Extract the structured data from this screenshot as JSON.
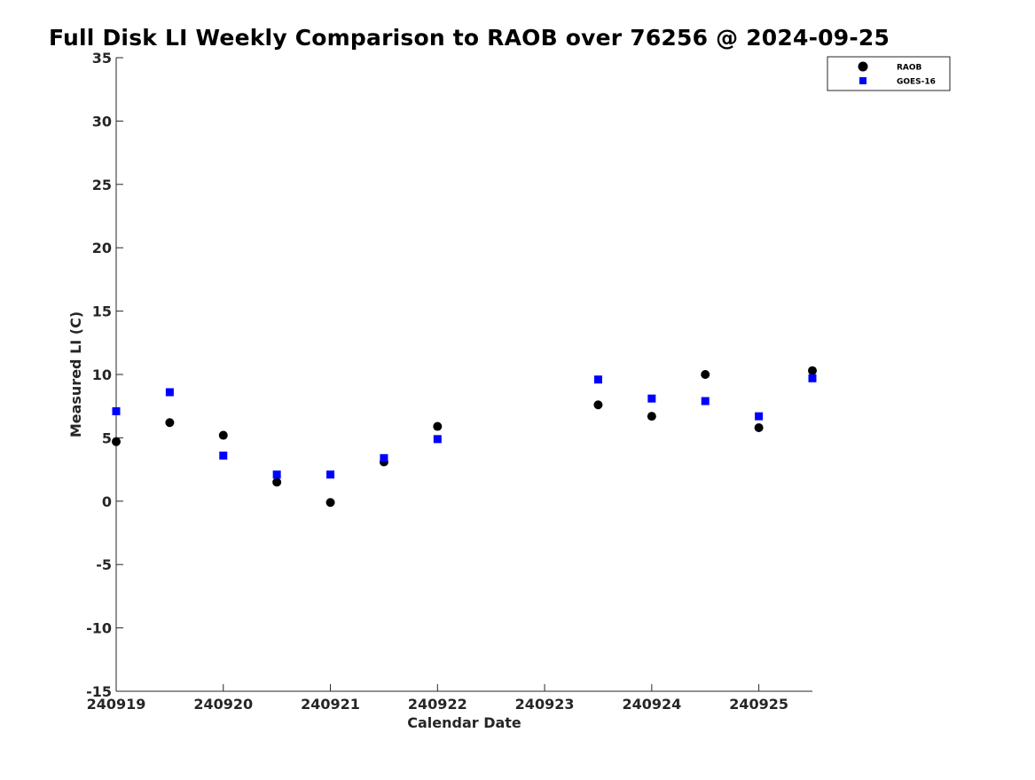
{
  "chart_data": {
    "type": "scatter",
    "title": "Full Disk LI Weekly Comparison to RAOB over 76256 @ 2024-09-25",
    "xlabel": "Calendar Date",
    "ylabel": "Measured LI (C)",
    "xlim": [
      240919,
      240925.5
    ],
    "ylim": [
      -15,
      35
    ],
    "xticks": [
      240919,
      240920,
      240921,
      240922,
      240923,
      240924,
      240925
    ],
    "xtick_labels": [
      "240919",
      "240920",
      "240921",
      "240922",
      "240923",
      "240924",
      "240925"
    ],
    "yticks": [
      -15,
      -10,
      -5,
      0,
      5,
      10,
      15,
      20,
      25,
      30,
      35
    ],
    "ytick_labels": [
      "-15",
      "-10",
      "-5",
      "0",
      "5",
      "10",
      "15",
      "20",
      "25",
      "30",
      "35"
    ],
    "grid": false,
    "legend_position": "top-right",
    "series": [
      {
        "name": "RAOB",
        "marker": "circle",
        "color": "#000000",
        "x": [
          240919,
          240919.5,
          240920,
          240920.5,
          240921,
          240921.5,
          240922,
          240923.5,
          240924,
          240924.5,
          240925,
          240925.5
        ],
        "y": [
          4.7,
          6.2,
          5.2,
          1.5,
          -0.1,
          3.1,
          5.9,
          7.6,
          6.7,
          10.0,
          5.8,
          10.3
        ]
      },
      {
        "name": "GOES-16",
        "marker": "square",
        "color": "#0000ff",
        "x": [
          240919,
          240919.5,
          240920,
          240920.5,
          240921,
          240921.5,
          240922,
          240923.5,
          240924,
          240924.5,
          240925,
          240925.5
        ],
        "y": [
          7.1,
          8.6,
          3.6,
          2.1,
          2.1,
          3.4,
          4.9,
          9.6,
          8.1,
          7.9,
          6.7,
          9.7
        ]
      }
    ]
  }
}
